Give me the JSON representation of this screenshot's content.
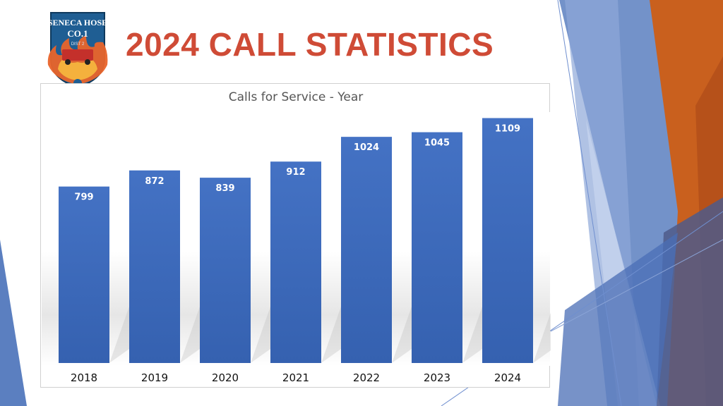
{
  "slide": {
    "title": "2024 CALL STATISTICS",
    "title_color": "#cf4b36",
    "logo": {
      "icon": "fire-department-badge-logo",
      "text_top": "SENECA HOSE",
      "text_mid": "CO.1",
      "text_dist": "DIST 2"
    }
  },
  "colors": {
    "bar": "#4472c4",
    "bar_dark": "#3561b0",
    "accent_orange": "#c9601e",
    "accent_blue": "#5b7fc0"
  },
  "chart_data": {
    "type": "bar",
    "title": "Calls for Service - Year",
    "categories": [
      "2018",
      "2019",
      "2020",
      "2021",
      "2022",
      "2023",
      "2024"
    ],
    "values": [
      799,
      872,
      839,
      912,
      1024,
      1045,
      1109
    ],
    "data_labels": [
      "799",
      "872",
      "839",
      "912",
      "1024",
      "1045",
      "1109"
    ],
    "ylim": [
      0,
      1200
    ],
    "grid": false,
    "legend": "none"
  }
}
